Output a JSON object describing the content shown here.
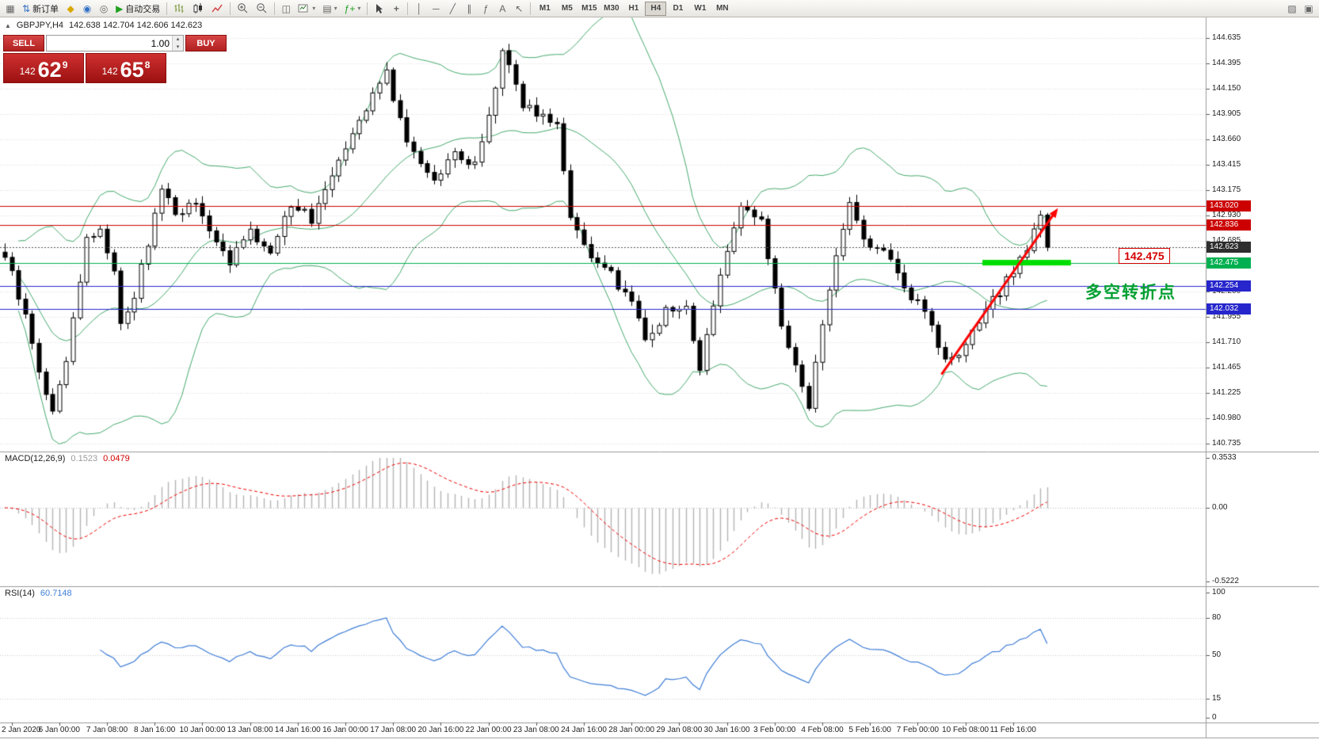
{
  "icons": {
    "grid": "▦",
    "new_order": "⇅",
    "mql_editor": "◆",
    "data_window": "◉",
    "strategy_tester": "◎",
    "autotrade_play": "▶",
    "tile_windows": "◫",
    "profiles": "▤",
    "indicators_f": "ƒ+",
    "crosshair": "+",
    "vline": "│",
    "hline": "─",
    "trendline": "╱",
    "channel": "∥",
    "fibonacci": "ƒ",
    "text_tool": "A",
    "arrows_tool": "↖",
    "dropdown": "▾",
    "pencil": "▨",
    "window": "▣",
    "symbol_marker": "▲",
    "vol_up": "▴",
    "vol_down": "▾"
  },
  "toolbar": {
    "new_order_label": "新订单",
    "autotrade_label": "自动交易",
    "timeframes": [
      "M1",
      "M5",
      "M15",
      "M30",
      "H1",
      "H4",
      "D1",
      "W1",
      "MN"
    ],
    "active_timeframe": "H4"
  },
  "trade_panel": {
    "sell_label": "SELL",
    "buy_label": "BUY",
    "volume": "1.00",
    "sell_prefix": "142",
    "sell_big": "62",
    "sell_sup": "9",
    "buy_prefix": "142",
    "buy_big": "65",
    "buy_sup": "8"
  },
  "chart_header": {
    "symbol": "GBPJPY,H4",
    "ohlc": "142.638 142.704 142.606 142.623"
  },
  "annotations": {
    "price_flag": "142.475",
    "note_cn": "多空转折点"
  },
  "chart_data": {
    "type": "candlestick",
    "symbol": "GBPJPY",
    "timeframe": "H4",
    "bars": 154,
    "price_min": 140.735,
    "price_max": 144.635,
    "y_axis_labels": [
      "144.635",
      "144.395",
      "144.150",
      "143.905",
      "143.660",
      "143.415",
      "143.175",
      "142.930",
      "142.685",
      "142.440",
      "142.200",
      "141.955",
      "141.710",
      "141.465",
      "141.225",
      "140.980",
      "140.735"
    ],
    "x_axis_labels": [
      "2 Jan 2020",
      "6 Jan 00:00",
      "7 Jan 08:00",
      "8 Jan 16:00",
      "10 Jan 00:00",
      "13 Jan 08:00",
      "14 Jan 16:00",
      "16 Jan 00:00",
      "17 Jan 08:00",
      "20 Jan 16:00",
      "22 Jan 00:00",
      "23 Jan 08:00",
      "24 Jan 16:00",
      "28 Jan 00:00",
      "29 Jan 08:00",
      "30 Jan 16:00",
      "3 Feb 00:00",
      "4 Feb 08:00",
      "5 Feb 16:00",
      "7 Feb 00:00",
      "10 Feb 08:00",
      "11 Feb 16:00"
    ],
    "close_anchors": [
      [
        0,
        142.55
      ],
      [
        3,
        141.95
      ],
      [
        6,
        141.2
      ],
      [
        7,
        141.05
      ],
      [
        9,
        141.55
      ],
      [
        12,
        142.7
      ],
      [
        14,
        142.8
      ],
      [
        16,
        142.4
      ],
      [
        17,
        141.9
      ],
      [
        19,
        142.15
      ],
      [
        23,
        143.2
      ],
      [
        25,
        142.95
      ],
      [
        28,
        143.05
      ],
      [
        30,
        142.75
      ],
      [
        33,
        142.5
      ],
      [
        36,
        142.75
      ],
      [
        39,
        142.6
      ],
      [
        42,
        143.05
      ],
      [
        45,
        142.9
      ],
      [
        48,
        143.35
      ],
      [
        51,
        143.75
      ],
      [
        54,
        144.1
      ],
      [
        56,
        144.3
      ],
      [
        58,
        143.85
      ],
      [
        60,
        143.5
      ],
      [
        63,
        143.3
      ],
      [
        66,
        143.5
      ],
      [
        69,
        143.4
      ],
      [
        71,
        143.9
      ],
      [
        73,
        144.5
      ],
      [
        74,
        144.4
      ],
      [
        76,
        144.0
      ],
      [
        79,
        143.9
      ],
      [
        81,
        143.8
      ],
      [
        83,
        142.95
      ],
      [
        86,
        142.5
      ],
      [
        89,
        142.35
      ],
      [
        92,
        142.1
      ],
      [
        94,
        141.75
      ],
      [
        97,
        142.0
      ],
      [
        100,
        142.05
      ],
      [
        102,
        141.45
      ],
      [
        105,
        142.4
      ],
      [
        108,
        143.0
      ],
      [
        111,
        142.85
      ],
      [
        114,
        141.9
      ],
      [
        117,
        141.25
      ],
      [
        118,
        141.1
      ],
      [
        121,
        142.25
      ],
      [
        124,
        143.05
      ],
      [
        126,
        142.7
      ],
      [
        129,
        142.6
      ],
      [
        132,
        142.2
      ],
      [
        135,
        142.05
      ],
      [
        138,
        141.5
      ],
      [
        140,
        141.55
      ],
      [
        143,
        141.9
      ],
      [
        146,
        142.2
      ],
      [
        149,
        142.5
      ],
      [
        152,
        142.9
      ],
      [
        153,
        142.62
      ]
    ],
    "bollinger": {
      "period": 20,
      "deviation": 2,
      "color": "#44a96c"
    },
    "candle": {
      "up_fill": "#ffffff",
      "down_fill": "#000000",
      "stroke": "#000000"
    },
    "h_lines": [
      {
        "price": 143.02,
        "label": "143.020",
        "color": "#cc0000"
      },
      {
        "price": 142.836,
        "label": "142.836",
        "color": "#cc0000"
      },
      {
        "price": 142.475,
        "label": "142.475",
        "color": "#00b050"
      },
      {
        "price": 142.254,
        "label": "142.254",
        "color": "#2626cc"
      },
      {
        "price": 142.032,
        "label": "142.032",
        "color": "#2626cc"
      }
    ],
    "current_price": {
      "price": 142.623,
      "label": "142.623",
      "color": "#2e2e2e"
    },
    "annotations": {
      "support_segment": {
        "price": 142.475,
        "bar_from": 143.5,
        "bar_to": 156.5,
        "color": "#00dd00",
        "thickness": 7
      },
      "trend_arrow": {
        "bar_from": 137.5,
        "price_from": 141.4,
        "bar_to": 154.6,
        "price_to": 143.0,
        "color": "#ff0000",
        "width": 3
      },
      "price_flag": {
        "text": "142.475",
        "price": 142.53,
        "bar": 163.5,
        "color": "#d40000"
      },
      "note": {
        "text": "多空转折点",
        "price": 142.21,
        "bar": 158.6,
        "color": "#00a032"
      }
    },
    "macd": {
      "label": "MACD(12,26,9)",
      "fast": 12,
      "slow": 26,
      "signal": 9,
      "value_main": "0.1523",
      "value_signal": "0.0479",
      "ylim": [
        -0.5222,
        0.3533
      ],
      "y_axis_labels": [
        "0.3533",
        "0.00",
        "-0.5222"
      ],
      "hist_color": "#b4b4b4",
      "signal_color": "#ee0000"
    },
    "rsi": {
      "label": "RSI(14)",
      "period": 14,
      "value": "60.7148",
      "range": [
        0,
        100
      ],
      "levels": [
        80,
        50,
        15
      ],
      "y_axis_labels": [
        "100",
        "80",
        "50",
        "15",
        "0"
      ],
      "color": "#3e7dd6"
    }
  }
}
